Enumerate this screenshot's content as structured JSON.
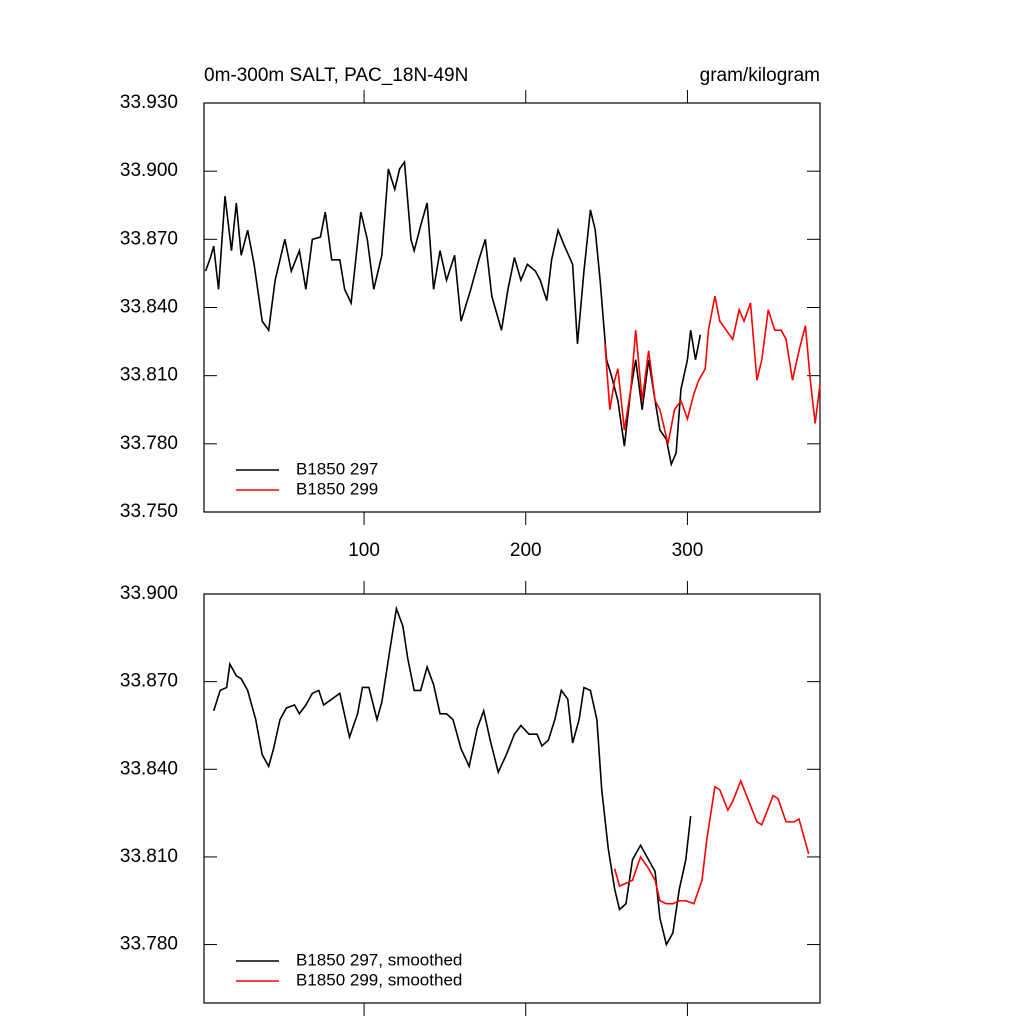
{
  "chart_data": [
    {
      "type": "line",
      "title": "0m-300m SALT, PAC_18N-49N",
      "units": "gram/kilogram",
      "xlim": [
        1,
        382
      ],
      "ylim": [
        33.75,
        33.93
      ],
      "xticks": [
        100,
        200,
        300
      ],
      "xtick_labels": true,
      "yticks": [
        {
          "value": 33.75,
          "label": "33.750"
        },
        {
          "value": 33.78,
          "label": "33.780"
        },
        {
          "value": 33.81,
          "label": "33.810"
        },
        {
          "value": 33.84,
          "label": "33.840"
        },
        {
          "value": 33.87,
          "label": "33.870"
        },
        {
          "value": 33.9,
          "label": "33.900"
        },
        {
          "value": 33.93,
          "label": "33.930"
        }
      ],
      "legend": "lower left",
      "series": [
        {
          "name": "B1850 297",
          "color": "#000000",
          "x": [
            2,
            5,
            7,
            10,
            14,
            18,
            21,
            24,
            28,
            32,
            37,
            41,
            45,
            51,
            55,
            60,
            64,
            68,
            73,
            76,
            80,
            85,
            88,
            92,
            98,
            102,
            106,
            111,
            115,
            119,
            122,
            125,
            129,
            131,
            135,
            139,
            143,
            147,
            151,
            156,
            160,
            166,
            171,
            175,
            179,
            185,
            189,
            193,
            197,
            201,
            206,
            209,
            213,
            216,
            220,
            224,
            229,
            232,
            236,
            240,
            243,
            246,
            250,
            253,
            257,
            261,
            265,
            268,
            272,
            276,
            280,
            283,
            287,
            290,
            293,
            296,
            300,
            302,
            305,
            308
          ],
          "values": [
            33.856,
            33.862,
            33.867,
            33.848,
            33.889,
            33.865,
            33.886,
            33.863,
            33.874,
            33.859,
            33.834,
            33.83,
            33.852,
            33.87,
            33.856,
            33.865,
            33.848,
            33.87,
            33.871,
            33.882,
            33.861,
            33.861,
            33.848,
            33.842,
            33.882,
            33.87,
            33.848,
            33.863,
            33.901,
            33.892,
            33.901,
            33.904,
            33.87,
            33.865,
            33.876,
            33.886,
            33.848,
            33.865,
            33.852,
            33.863,
            33.834,
            33.848,
            33.861,
            33.87,
            33.845,
            33.83,
            33.848,
            33.862,
            33.852,
            33.859,
            33.856,
            33.852,
            33.843,
            33.861,
            33.874,
            33.867,
            33.859,
            33.824,
            33.856,
            33.883,
            33.874,
            33.852,
            33.817,
            33.81,
            33.799,
            33.779,
            33.804,
            33.817,
            33.795,
            33.817,
            33.799,
            33.786,
            33.782,
            33.771,
            33.776,
            33.804,
            33.817,
            33.83,
            33.817,
            33.828
          ]
        },
        {
          "name": "B1850 299",
          "color": "#ff0000",
          "x": [
            249,
            252,
            255,
            257,
            261,
            265,
            268,
            272,
            276,
            280,
            283,
            288,
            292,
            296,
            300,
            304,
            307,
            311,
            313,
            317,
            320,
            324,
            328,
            332,
            335,
            339,
            343,
            346,
            350,
            354,
            358,
            361,
            365,
            369,
            373,
            376,
            379,
            382
          ],
          "values": [
            33.824,
            33.795,
            33.808,
            33.813,
            33.786,
            33.804,
            33.83,
            33.799,
            33.821,
            33.799,
            33.795,
            33.78,
            33.795,
            33.799,
            33.791,
            33.802,
            33.808,
            33.813,
            33.83,
            33.845,
            33.834,
            33.83,
            33.826,
            33.839,
            33.834,
            33.842,
            33.808,
            33.817,
            33.839,
            33.83,
            33.83,
            33.826,
            33.808,
            33.821,
            33.832,
            33.808,
            33.789,
            33.806
          ]
        }
      ]
    },
    {
      "type": "line",
      "xlim": [
        1,
        382
      ],
      "ylim": [
        33.76,
        33.9
      ],
      "xticks": [
        100,
        200,
        300
      ],
      "xtick_labels": false,
      "yticks": [
        {
          "value": 33.78,
          "label": "33.780"
        },
        {
          "value": 33.81,
          "label": "33.810"
        },
        {
          "value": 33.84,
          "label": "33.840"
        },
        {
          "value": 33.87,
          "label": "33.870"
        },
        {
          "value": 33.9,
          "label": "33.900"
        }
      ],
      "legend": "lower left",
      "series": [
        {
          "name": "B1850 297, smoothed",
          "color": "#000000",
          "x": [
            7,
            11,
            15,
            17,
            21,
            24,
            28,
            33,
            37,
            41,
            44,
            48,
            52,
            57,
            60,
            64,
            68,
            72,
            75,
            80,
            85,
            91,
            96,
            99,
            103,
            108,
            111,
            116,
            120,
            124,
            127,
            131,
            135,
            139,
            143,
            147,
            151,
            155,
            160,
            165,
            170,
            174,
            178,
            183,
            188,
            193,
            197,
            202,
            207,
            210,
            214,
            218,
            222,
            226,
            229,
            233,
            236,
            240,
            244,
            247,
            251,
            255,
            258,
            262,
            266,
            271,
            276,
            280,
            283,
            287,
            291,
            295,
            299,
            302
          ],
          "values": [
            33.86,
            33.867,
            33.868,
            33.876,
            33.872,
            33.871,
            33.867,
            33.857,
            33.845,
            33.841,
            33.847,
            33.857,
            33.861,
            33.862,
            33.859,
            33.862,
            33.866,
            33.867,
            33.862,
            33.864,
            33.866,
            33.851,
            33.859,
            33.868,
            33.868,
            33.857,
            33.863,
            33.881,
            33.895,
            33.889,
            33.878,
            33.867,
            33.867,
            33.875,
            33.869,
            33.859,
            33.859,
            33.857,
            33.847,
            33.841,
            33.854,
            33.86,
            33.85,
            33.839,
            33.845,
            33.852,
            33.855,
            33.852,
            33.852,
            33.848,
            33.85,
            33.857,
            33.867,
            33.864,
            33.849,
            33.857,
            33.868,
            33.867,
            33.857,
            33.833,
            33.813,
            33.799,
            33.792,
            33.794,
            33.809,
            33.814,
            33.809,
            33.805,
            33.789,
            33.78,
            33.784,
            33.799,
            33.809,
            33.824
          ]
        },
        {
          "name": "B1850 299, smoothed",
          "color": "#ff0000",
          "x": [
            255,
            258,
            262,
            266,
            271,
            276,
            280,
            283,
            287,
            291,
            295,
            299,
            304,
            309,
            312,
            317,
            320,
            325,
            328,
            333,
            338,
            343,
            346,
            353,
            356,
            361,
            366,
            369,
            375
          ],
          "values": [
            33.806,
            33.8,
            33.801,
            33.802,
            33.81,
            33.806,
            33.802,
            33.795,
            33.794,
            33.794,
            33.795,
            33.795,
            33.794,
            33.802,
            33.816,
            33.834,
            33.833,
            33.826,
            33.829,
            33.836,
            33.829,
            33.822,
            33.821,
            33.831,
            33.83,
            33.822,
            33.822,
            33.823,
            33.811
          ]
        }
      ]
    }
  ]
}
